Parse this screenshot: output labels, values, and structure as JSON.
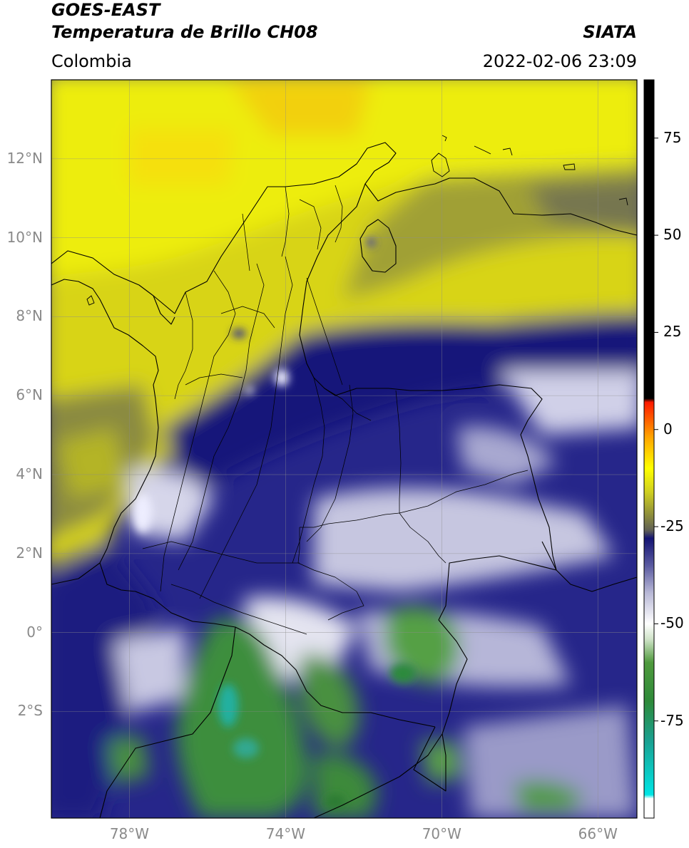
{
  "header": {
    "satellite": "GOES-EAST",
    "product": "Temperatura de Brillo CH08",
    "region": "Colombia",
    "institution": "SIATA",
    "datetime": "2022-02-06 23:09"
  },
  "map": {
    "lat_range": [
      -4.7,
      14.0
    ],
    "lon_range": [
      -80.0,
      -65.0
    ],
    "lat_ticks": [
      {
        "value": 12,
        "label": "12°N"
      },
      {
        "value": 10,
        "label": "10°N"
      },
      {
        "value": 8,
        "label": "8°N"
      },
      {
        "value": 6,
        "label": "6°N"
      },
      {
        "value": 4,
        "label": "4°N"
      },
      {
        "value": 2,
        "label": "2°N"
      },
      {
        "value": 0,
        "label": "0°"
      },
      {
        "value": -2,
        "label": "2°S"
      }
    ],
    "lon_ticks": [
      {
        "value": -78,
        "label": "78°W"
      },
      {
        "value": -74,
        "label": "74°W"
      },
      {
        "value": -70,
        "label": "70°W"
      },
      {
        "value": -66,
        "label": "66°W"
      }
    ],
    "gridlines": true
  },
  "colorbar": {
    "range": [
      -100,
      90
    ],
    "ticks": [
      {
        "value": 75,
        "label": "75"
      },
      {
        "value": 50,
        "label": "50"
      },
      {
        "value": 25,
        "label": "25"
      },
      {
        "value": 0,
        "label": "0"
      },
      {
        "value": -25,
        "label": "-25"
      },
      {
        "value": -50,
        "label": "-50"
      },
      {
        "value": -75,
        "label": "-75"
      }
    ],
    "stops": [
      {
        "value": -100,
        "color": "#ffffff"
      },
      {
        "value": -95,
        "color": "#ffffff"
      },
      {
        "value": -94,
        "color": "#00e5e5"
      },
      {
        "value": -80,
        "color": "#1aa090"
      },
      {
        "value": -70,
        "color": "#2e8a3a"
      },
      {
        "value": -60,
        "color": "#4f9a3d"
      },
      {
        "value": -54,
        "color": "#cfe3c8"
      },
      {
        "value": -50,
        "color": "#ffffff"
      },
      {
        "value": -42,
        "color": "#b8b8d6"
      },
      {
        "value": -35,
        "color": "#5a5aa0"
      },
      {
        "value": -28,
        "color": "#141473"
      },
      {
        "value": -26,
        "color": "#5f5f55"
      },
      {
        "value": -22,
        "color": "#8e8e3c"
      },
      {
        "value": -16,
        "color": "#d0d020"
      },
      {
        "value": -10,
        "color": "#ffff00"
      },
      {
        "value": -2,
        "color": "#ffa500"
      },
      {
        "value": 7,
        "color": "#ff1a00"
      },
      {
        "value": 8,
        "color": "#000000"
      },
      {
        "value": 90,
        "color": "#000000"
      }
    ]
  }
}
